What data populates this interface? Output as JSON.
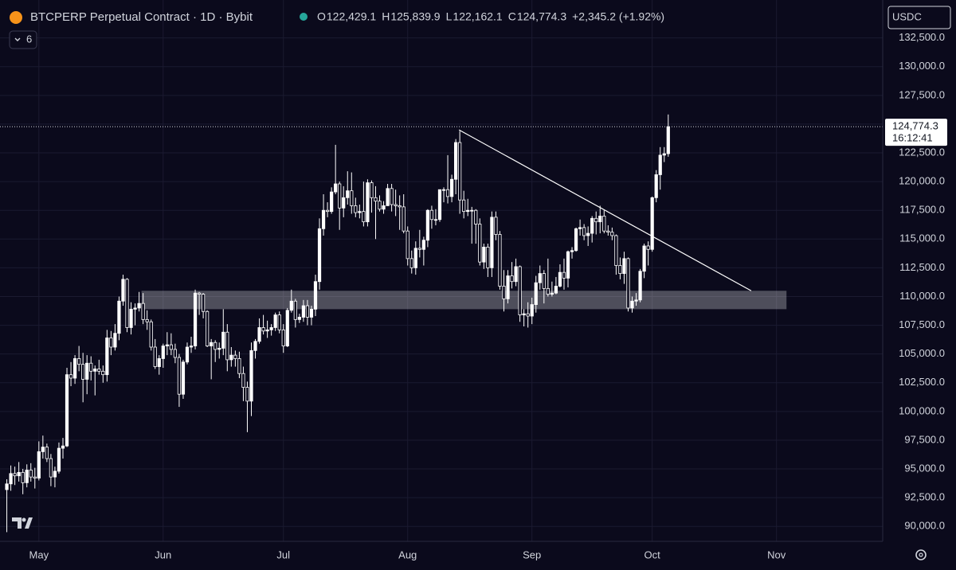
{
  "chart_data": {
    "type": "candlestick",
    "title": "BTCPERP Perpetual Contract · 1D · Bybit",
    "legend": [
      {
        "key": "O",
        "value": "122,429.1"
      },
      {
        "key": "H",
        "value": "125,839.9"
      },
      {
        "key": "L",
        "value": "122,162.1"
      },
      {
        "key": "C",
        "value": "124,774.3"
      }
    ],
    "change": "+2,345.2 (+1.92%)",
    "indicator_count": "6",
    "currency": "USDC",
    "countdown": "16:12:41",
    "up_color": "#ffffff",
    "down_color": "#0b0a1c",
    "wick_color": "#ffffff",
    "grid": true,
    "xlim": [
      -9.7,
      210.5
    ],
    "ylim": [
      88700,
      135800
    ],
    "xticks": [
      {
        "value": 0,
        "label": "May"
      },
      {
        "value": 31,
        "label": "Jun"
      },
      {
        "value": 61,
        "label": "Jul"
      },
      {
        "value": 92,
        "label": "Aug"
      },
      {
        "value": 123,
        "label": "Sep"
      },
      {
        "value": 153,
        "label": "Oct"
      },
      {
        "value": 184,
        "label": "Nov"
      }
    ],
    "yticks": [
      {
        "value": 90000,
        "label": "90,000.0"
      },
      {
        "value": 92500,
        "label": "92,500.0"
      },
      {
        "value": 95000,
        "label": "95,000.0"
      },
      {
        "value": 97500,
        "label": "97,500.0"
      },
      {
        "value": 100000,
        "label": "100,000.0"
      },
      {
        "value": 102500,
        "label": "102,500.0"
      },
      {
        "value": 105000,
        "label": "105,000.0"
      },
      {
        "value": 107500,
        "label": "107,500.0"
      },
      {
        "value": 110000,
        "label": "110,000.0"
      },
      {
        "value": 112500,
        "label": "112,500.0"
      },
      {
        "value": 115000,
        "label": "115,000.0"
      },
      {
        "value": 117500,
        "label": "117,500.0"
      },
      {
        "value": 120000,
        "label": "120,000.0"
      },
      {
        "value": 122500,
        "label": "122,500.0"
      },
      {
        "value": 125000,
        "label": "125,000.0"
      },
      {
        "value": 127500,
        "label": "127,500.0"
      },
      {
        "value": 130000,
        "label": "130,000.0"
      },
      {
        "value": 132500,
        "label": "132,500.0"
      }
    ],
    "trendline": {
      "x": [
        104.8,
        177.7
      ],
      "y": [
        124500,
        110500
      ]
    },
    "zone": {
      "x": [
        25.6,
        186.5
      ],
      "y": [
        108900,
        110500
      ]
    },
    "x": [
      -8,
      -7,
      -6,
      -5,
      -4,
      -3,
      -2,
      -1,
      0,
      1,
      2,
      3,
      4,
      5,
      6,
      7,
      8,
      9,
      10,
      11,
      12,
      13,
      14,
      15,
      16,
      17,
      18,
      19,
      20,
      21,
      22,
      23,
      24,
      25,
      26,
      27,
      28,
      29,
      30,
      31,
      32,
      33,
      34,
      35,
      36,
      37,
      38,
      39,
      40,
      41,
      42,
      43,
      44,
      45,
      46,
      47,
      48,
      49,
      50,
      51,
      52,
      53,
      54,
      55,
      56,
      57,
      58,
      59,
      60,
      61,
      62,
      63,
      64,
      65,
      66,
      67,
      68,
      69,
      70,
      71,
      72,
      73,
      74,
      75,
      76,
      77,
      78,
      79,
      80,
      81,
      82,
      83,
      84,
      85,
      86,
      87,
      88,
      89,
      90,
      91,
      92,
      93,
      94,
      95,
      96,
      97,
      98,
      99,
      100,
      101,
      102,
      103,
      104,
      105,
      106,
      107,
      108,
      109,
      110,
      111,
      112,
      113,
      114,
      115,
      116,
      117,
      118,
      119,
      120,
      121,
      122,
      123,
      124,
      125,
      126,
      127,
      128,
      129,
      130,
      131,
      132,
      133,
      134,
      135,
      136,
      137,
      138,
      139,
      140,
      141,
      142,
      143,
      144,
      145,
      146,
      147,
      148,
      149,
      150,
      151,
      152,
      153,
      154,
      155,
      156,
      157
    ],
    "candles": [
      [
        93200,
        94100,
        89500,
        93700
      ],
      [
        93700,
        95300,
        93100,
        94600
      ],
      [
        94600,
        95200,
        93600,
        94400
      ],
      [
        94400,
        95600,
        93900,
        94700
      ],
      [
        94700,
        95000,
        92800,
        93800
      ],
      [
        93800,
        95400,
        93400,
        94900
      ],
      [
        94900,
        95500,
        93900,
        94300
      ],
      [
        94300,
        95100,
        93300,
        94200
      ],
      [
        94200,
        97400,
        94000,
        96500
      ],
      [
        96500,
        97900,
        95900,
        96900
      ],
      [
        96900,
        97200,
        95600,
        95900
      ],
      [
        95900,
        96300,
        93500,
        94300
      ],
      [
        94300,
        95200,
        93400,
        94800
      ],
      [
        94800,
        97300,
        94600,
        96800
      ],
      [
        96800,
        97700,
        95900,
        97000
      ],
      [
        97000,
        103800,
        96900,
        103200
      ],
      [
        103200,
        104300,
        102200,
        102900
      ],
      [
        102900,
        104900,
        102400,
        104600
      ],
      [
        104600,
        105700,
        103500,
        104100
      ],
      [
        104100,
        105100,
        100800,
        102800
      ],
      [
        102800,
        104900,
        101500,
        104200
      ],
      [
        104200,
        104800,
        102700,
        103500
      ],
      [
        103500,
        104000,
        101400,
        103700
      ],
      [
        103700,
        104500,
        103200,
        103500
      ],
      [
        103500,
        104000,
        102500,
        103200
      ],
      [
        103200,
        107100,
        102600,
        106400
      ],
      [
        106400,
        107000,
        104900,
        105600
      ],
      [
        105600,
        107600,
        105300,
        106800
      ],
      [
        106800,
        110000,
        106200,
        109600
      ],
      [
        109600,
        111900,
        109200,
        111500
      ],
      [
        111500,
        111600,
        106900,
        107300
      ],
      [
        107300,
        109500,
        106700,
        108900
      ],
      [
        108900,
        109400,
        107500,
        109000
      ],
      [
        109000,
        110400,
        108700,
        109400
      ],
      [
        109400,
        110300,
        107600,
        108000
      ],
      [
        108000,
        108800,
        107100,
        107800
      ],
      [
        107800,
        108000,
        105300,
        105600
      ],
      [
        105600,
        106300,
        103700,
        103900
      ],
      [
        103900,
        104900,
        103200,
        104600
      ],
      [
        104600,
        105900,
        103800,
        105700
      ],
      [
        105700,
        106900,
        104900,
        105800
      ],
      [
        105800,
        106800,
        104900,
        105400
      ],
      [
        105400,
        105900,
        104200,
        104700
      ],
      [
        104700,
        105000,
        100400,
        101500
      ],
      [
        101500,
        104500,
        101100,
        104300
      ],
      [
        104300,
        106000,
        104100,
        105600
      ],
      [
        105600,
        106500,
        105100,
        105700
      ],
      [
        105700,
        110600,
        105400,
        110300
      ],
      [
        110300,
        110400,
        108400,
        110200
      ],
      [
        110200,
        110300,
        108100,
        108700
      ],
      [
        108700,
        108800,
        105600,
        105700
      ],
      [
        105700,
        106300,
        102800,
        106000
      ],
      [
        106000,
        106200,
        104300,
        105400
      ],
      [
        105400,
        106000,
        104600,
        105500
      ],
      [
        105500,
        108900,
        104900,
        106900
      ],
      [
        106900,
        107600,
        103500,
        104500
      ],
      [
        104500,
        105600,
        103900,
        104900
      ],
      [
        104900,
        105300,
        103900,
        104600
      ],
      [
        104600,
        105200,
        102900,
        103300
      ],
      [
        103300,
        103900,
        100900,
        102100
      ],
      [
        102100,
        102600,
        98200,
        100900
      ],
      [
        100900,
        106000,
        99600,
        105300
      ],
      [
        105300,
        106300,
        104600,
        106100
      ],
      [
        106100,
        108100,
        105900,
        107300
      ],
      [
        107300,
        108400,
        106700,
        107000
      ],
      [
        107000,
        107900,
        106400,
        107100
      ],
      [
        107100,
        107600,
        106600,
        107300
      ],
      [
        107300,
        108600,
        107000,
        108400
      ],
      [
        108400,
        108700,
        106800,
        107100
      ],
      [
        107100,
        107600,
        105100,
        105700
      ],
      [
        105700,
        109000,
        105600,
        108800
      ],
      [
        108800,
        110600,
        108600,
        109600
      ],
      [
        109600,
        109800,
        107300,
        108000
      ],
      [
        108000,
        108500,
        107700,
        108200
      ],
      [
        108200,
        109700,
        107800,
        109200
      ],
      [
        109200,
        109700,
        107500,
        108200
      ],
      [
        108200,
        109200,
        107500,
        108900
      ],
      [
        108900,
        111900,
        108300,
        111300
      ],
      [
        111300,
        116800,
        110600,
        115900
      ],
      [
        115900,
        118900,
        115300,
        117500
      ],
      [
        117500,
        118200,
        116900,
        117400
      ],
      [
        117400,
        119500,
        117200,
        119100
      ],
      [
        119100,
        123200,
        118900,
        119800
      ],
      [
        119800,
        120000,
        115800,
        117700
      ],
      [
        117700,
        119600,
        116900,
        118600
      ],
      [
        118600,
        120900,
        118000,
        119200
      ],
      [
        119200,
        120800,
        117200,
        117900
      ],
      [
        117900,
        118600,
        116900,
        117300
      ],
      [
        117300,
        118000,
        116800,
        117400
      ],
      [
        117400,
        120000,
        116100,
        116500
      ],
      [
        116500,
        120200,
        116100,
        119900
      ],
      [
        119900,
        120100,
        117300,
        118600
      ],
      [
        118600,
        119600,
        115000,
        118300
      ],
      [
        118300,
        118800,
        117400,
        117600
      ],
      [
        117600,
        118300,
        117200,
        117900
      ],
      [
        117900,
        119800,
        117900,
        119400
      ],
      [
        119400,
        119800,
        117400,
        118000
      ],
      [
        118000,
        119300,
        117000,
        117900
      ],
      [
        117900,
        118800,
        115800,
        117800
      ],
      [
        117800,
        118900,
        115500,
        115700
      ],
      [
        115700,
        116100,
        112700,
        113300
      ],
      [
        113300,
        114000,
        112000,
        112500
      ],
      [
        112500,
        114800,
        111900,
        114200
      ],
      [
        114200,
        115800,
        113400,
        114100
      ],
      [
        114100,
        115200,
        112700,
        114900
      ],
      [
        114900,
        117600,
        114300,
        117500
      ],
      [
        117500,
        117900,
        115900,
        116700
      ],
      [
        116700,
        117600,
        116200,
        116700
      ],
      [
        116700,
        119300,
        116500,
        119300
      ],
      [
        119300,
        119500,
        118200,
        119300
      ],
      [
        119300,
        122300,
        118100,
        118700
      ],
      [
        118700,
        120600,
        118200,
        120200
      ],
      [
        120200,
        123700,
        118900,
        123400
      ],
      [
        123400,
        124400,
        117200,
        118400
      ],
      [
        118400,
        119200,
        116800,
        117400
      ],
      [
        117400,
        118500,
        117000,
        117500
      ],
      [
        117500,
        117800,
        114600,
        117500
      ],
      [
        117500,
        117600,
        114600,
        116300
      ],
      [
        116300,
        116800,
        112700,
        113000
      ],
      [
        113000,
        114600,
        112400,
        114300
      ],
      [
        114300,
        114600,
        111700,
        112500
      ],
      [
        112500,
        117400,
        111700,
        116900
      ],
      [
        116900,
        117400,
        114900,
        115400
      ],
      [
        115400,
        115700,
        110600,
        110900
      ],
      [
        110900,
        112300,
        108700,
        109800
      ],
      [
        109800,
        112300,
        109400,
        111800
      ],
      [
        111800,
        113000,
        110700,
        111300
      ],
      [
        111300,
        113300,
        110900,
        112600
      ],
      [
        112600,
        112700,
        107800,
        108400
      ],
      [
        108400,
        108900,
        107400,
        108500
      ],
      [
        108500,
        109500,
        107300,
        108300
      ],
      [
        108300,
        109900,
        107600,
        109300
      ],
      [
        109300,
        111800,
        108600,
        111200
      ],
      [
        111200,
        112700,
        110600,
        112000
      ],
      [
        112000,
        112300,
        109400,
        110700
      ],
      [
        110700,
        113300,
        110000,
        110200
      ],
      [
        110200,
        111300,
        110000,
        110300
      ],
      [
        110300,
        111700,
        110200,
        110900
      ],
      [
        110900,
        112800,
        110800,
        112100
      ],
      [
        112100,
        113300,
        110600,
        111600
      ],
      [
        111600,
        114000,
        110800,
        113900
      ],
      [
        113900,
        114300,
        113300,
        114000
      ],
      [
        114000,
        116000,
        113900,
        115900
      ],
      [
        115900,
        116700,
        115300,
        116000
      ],
      [
        116000,
        116300,
        114900,
        115300
      ],
      [
        115300,
        116100,
        114400,
        115500
      ],
      [
        115500,
        117000,
        114700,
        116800
      ],
      [
        116800,
        117400,
        115400,
        116500
      ],
      [
        116500,
        117900,
        115500,
        117000
      ],
      [
        117000,
        117500,
        115500,
        115700
      ],
      [
        115700,
        116200,
        115300,
        115600
      ],
      [
        115600,
        116000,
        114900,
        115300
      ],
      [
        115300,
        115400,
        111900,
        112700
      ],
      [
        112700,
        113400,
        111500,
        112000
      ],
      [
        112000,
        113900,
        111100,
        113300
      ],
      [
        113300,
        113400,
        108700,
        109000
      ],
      [
        109000,
        110000,
        108600,
        109600
      ],
      [
        109600,
        110300,
        109200,
        109700
      ],
      [
        109700,
        112400,
        109500,
        112200
      ],
      [
        112200,
        114600,
        111600,
        114400
      ],
      [
        114400,
        114800,
        112700,
        114100
      ],
      [
        114100,
        118700,
        113900,
        118600
      ],
      [
        118600,
        121000,
        118200,
        120600
      ],
      [
        120600,
        123000,
        119300,
        122300
      ],
      [
        122300,
        123000,
        121700,
        122429.1
      ],
      [
        122429.1,
        125839.9,
        122162.1,
        124774.3
      ]
    ]
  }
}
